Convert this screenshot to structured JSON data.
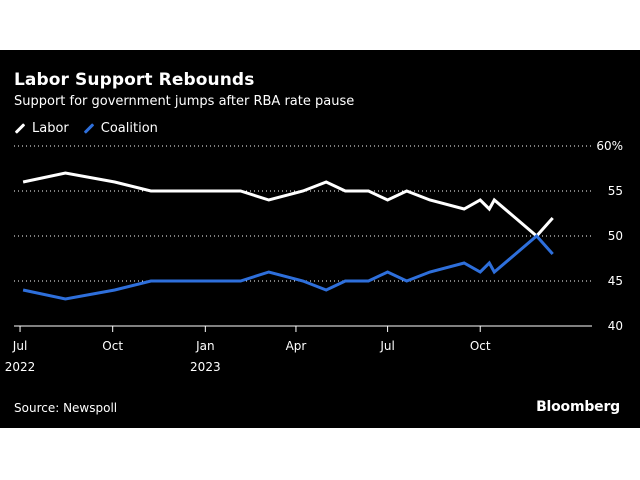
{
  "title": "Labor Support Rebounds",
  "subtitle": "Support for government jumps after RBA rate pause",
  "legend": [
    {
      "label": "Labor",
      "color": "#ffffff"
    },
    {
      "label": "Coalition",
      "color": "#2e6fdb"
    }
  ],
  "source": "Source: Newspoll",
  "brand": "Bloomberg",
  "chart_data": {
    "type": "line",
    "title": "Labor Support Rebounds",
    "subtitle": "Support for government jumps after RBA rate pause",
    "xlabel": "",
    "ylabel": "",
    "ylim": [
      40,
      60
    ],
    "xlim": [
      "2022-06-25",
      "2024-01-20"
    ],
    "grid": true,
    "legend_position": "top-left",
    "y_ticks": [
      {
        "value": 40,
        "label": "40"
      },
      {
        "value": 45,
        "label": "45"
      },
      {
        "value": 50,
        "label": "50"
      },
      {
        "value": 55,
        "label": "55"
      },
      {
        "value": 60,
        "label": "60%"
      }
    ],
    "x_ticks": [
      {
        "date": "2022-07-01",
        "label": "Jul",
        "sublabel": "2022"
      },
      {
        "date": "2022-10-01",
        "label": "Oct",
        "sublabel": ""
      },
      {
        "date": "2023-01-01",
        "label": "Jan",
        "sublabel": "2023"
      },
      {
        "date": "2023-04-01",
        "label": "Apr",
        "sublabel": ""
      },
      {
        "date": "2023-07-01",
        "label": "Jul",
        "sublabel": ""
      },
      {
        "date": "2023-10-01",
        "label": "Oct",
        "sublabel": ""
      }
    ],
    "series": [
      {
        "name": "Labor",
        "color": "#ffffff",
        "points": [
          {
            "x": "2022-07-04",
            "y": 56
          },
          {
            "x": "2022-08-15",
            "y": 57
          },
          {
            "x": "2022-10-03",
            "y": 56
          },
          {
            "x": "2022-11-08",
            "y": 55
          },
          {
            "x": "2023-02-05",
            "y": 55
          },
          {
            "x": "2023-03-05",
            "y": 54
          },
          {
            "x": "2023-04-08",
            "y": 55
          },
          {
            "x": "2023-05-01",
            "y": 56
          },
          {
            "x": "2023-05-20",
            "y": 55
          },
          {
            "x": "2023-06-12",
            "y": 55
          },
          {
            "x": "2023-07-01",
            "y": 54
          },
          {
            "x": "2023-07-20",
            "y": 55
          },
          {
            "x": "2023-08-12",
            "y": 54
          },
          {
            "x": "2023-09-15",
            "y": 53
          },
          {
            "x": "2023-10-01",
            "y": 54
          },
          {
            "x": "2023-10-10",
            "y": 53
          },
          {
            "x": "2023-10-15",
            "y": 54
          },
          {
            "x": "2023-11-05",
            "y": 52
          },
          {
            "x": "2023-11-26",
            "y": 50
          },
          {
            "x": "2023-12-12",
            "y": 52
          }
        ]
      },
      {
        "name": "Coalition",
        "color": "#2e6fdb",
        "points": [
          {
            "x": "2022-07-04",
            "y": 44
          },
          {
            "x": "2022-08-15",
            "y": 43
          },
          {
            "x": "2022-10-03",
            "y": 44
          },
          {
            "x": "2022-11-08",
            "y": 45
          },
          {
            "x": "2023-02-05",
            "y": 45
          },
          {
            "x": "2023-03-05",
            "y": 46
          },
          {
            "x": "2023-04-08",
            "y": 45
          },
          {
            "x": "2023-05-01",
            "y": 44
          },
          {
            "x": "2023-05-20",
            "y": 45
          },
          {
            "x": "2023-06-12",
            "y": 45
          },
          {
            "x": "2023-07-01",
            "y": 46
          },
          {
            "x": "2023-07-20",
            "y": 45
          },
          {
            "x": "2023-08-12",
            "y": 46
          },
          {
            "x": "2023-09-15",
            "y": 47
          },
          {
            "x": "2023-10-01",
            "y": 46
          },
          {
            "x": "2023-10-10",
            "y": 47
          },
          {
            "x": "2023-10-15",
            "y": 46
          },
          {
            "x": "2023-11-05",
            "y": 48
          },
          {
            "x": "2023-11-26",
            "y": 50
          },
          {
            "x": "2023-12-12",
            "y": 48
          }
        ]
      }
    ]
  }
}
